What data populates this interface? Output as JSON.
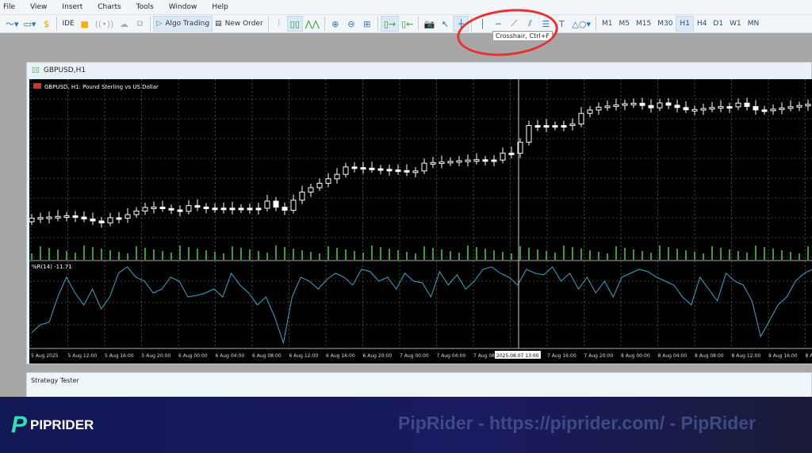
{
  "menu": [
    "File",
    "View",
    "Insert",
    "Charts",
    "Tools",
    "Window",
    "Help"
  ],
  "toolbar": {
    "ide": "IDE",
    "algo_trading": "Algo Trading",
    "new_order": "New Order",
    "timeframes": [
      "M1",
      "M5",
      "M15",
      "M30",
      "H1",
      "H4",
      "D1",
      "W1",
      "MN"
    ],
    "active_timeframe": "H1",
    "tooltip": "Crosshair, Ctrl+F"
  },
  "chart_window": {
    "title": "GBPUSD,H1",
    "symbol_desc": "GBPUSD, H1:  Pound Sterling vs US Dollar",
    "indicator_label": "%R(14) -11.71",
    "time_labels": [
      "5 Aug 2025",
      "5 Aug 12:00",
      "5 Aug 16:00",
      "5 Aug 20:00",
      "6 Aug 00:00",
      "6 Aug 04:00",
      "6 Aug 08:00",
      "6 Aug 12:00",
      "6 Aug 16:00",
      "6 Aug 20:00",
      "7 Aug 00:00",
      "7 Aug 04:00",
      "7 Aug 08:00",
      "7 Aug 16:00",
      "7 Aug 20:00",
      "8 Aug 00:00",
      "8 Aug 04:00",
      "8 Aug 08:00",
      "8 Aug 12:00",
      "8 Aug 16:00",
      "8 Aug 20:00"
    ],
    "crosshair_time": "2025.08.07 13:00",
    "williams_r": [
      -85,
      -75,
      -72,
      -40,
      -15,
      -35,
      -50,
      -30,
      -55,
      -40,
      -10,
      -2,
      -15,
      -20,
      -35,
      -30,
      -15,
      -20,
      -40,
      -38,
      -35,
      -30,
      -40,
      -10,
      -25,
      -35,
      -50,
      -40,
      -65,
      -98,
      -40,
      -15,
      -20,
      -30,
      -18,
      -10,
      -15,
      -25,
      -5,
      -8,
      -20,
      -15,
      -30,
      -10,
      -20,
      -22,
      -40,
      -8,
      -25,
      -12,
      -30,
      -20,
      -5,
      -2,
      -10,
      -15,
      -25,
      -5,
      -10,
      -12,
      -2,
      -20,
      -10,
      -30,
      -15,
      -35,
      -20,
      -40,
      -15,
      -10,
      -5,
      -8,
      -15,
      -20,
      -25,
      -40,
      -50,
      -15,
      -30,
      -45,
      -10,
      -20,
      -25,
      -45,
      -90,
      -70,
      -50,
      -40,
      -20,
      -10,
      -5
    ]
  },
  "strategy_tester": {
    "title": "Strategy Tester"
  },
  "footer": {
    "logo": "PIPRIDER",
    "watermark": "PipRider - https://piprider.com/ - PipRider"
  }
}
